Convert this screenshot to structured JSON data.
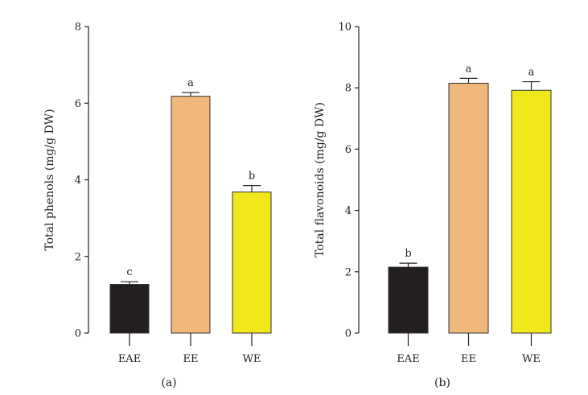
{
  "chart_data": [
    {
      "type": "bar",
      "panel_label": "(a)",
      "categories": [
        "EAE",
        "EE",
        "WE"
      ],
      "values": [
        1.27,
        6.18,
        3.68
      ],
      "errors": [
        0.07,
        0.1,
        0.17
      ],
      "significance": [
        "c",
        "a",
        "b"
      ],
      "colors": [
        "#231f20",
        "#efb77a",
        "#f0e81a"
      ],
      "ylabel": "Total phenols (mg/g DW)",
      "xlabel": "",
      "ylim": [
        0,
        8
      ],
      "yticks": [
        0,
        2,
        4,
        6,
        8
      ],
      "grid": false,
      "legend": "none"
    },
    {
      "type": "bar",
      "panel_label": "(b)",
      "categories": [
        "EAE",
        "EE",
        "WE"
      ],
      "values": [
        2.15,
        8.15,
        7.92
      ],
      "errors": [
        0.13,
        0.16,
        0.28
      ],
      "significance": [
        "b",
        "a",
        "a"
      ],
      "colors": [
        "#231f20",
        "#efb77a",
        "#f0e81a"
      ],
      "ylabel": "Total flavonoids (mg/g DW)",
      "xlabel": "",
      "ylim": [
        0,
        10
      ],
      "yticks": [
        0,
        2,
        4,
        6,
        8,
        10
      ],
      "grid": false,
      "legend": "none"
    }
  ]
}
